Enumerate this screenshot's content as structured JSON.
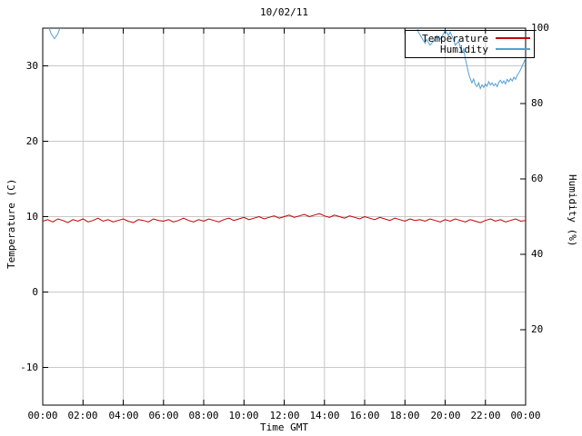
{
  "chart_data": {
    "type": "line",
    "title": "10/02/11",
    "xlabel": "Time GMT",
    "ylabel_left": "Temperature (C)",
    "ylabel_right": "Humidity (%)",
    "x_ticks": [
      "00:00",
      "02:00",
      "04:00",
      "06:00",
      "08:00",
      "10:00",
      "12:00",
      "14:00",
      "16:00",
      "18:00",
      "20:00",
      "22:00",
      "00:00"
    ],
    "x_tick_step_minutes": 120,
    "x_range_minutes": [
      0,
      1440
    ],
    "left_ticks": [
      -10,
      0,
      10,
      20,
      30
    ],
    "right_ticks": [
      20,
      40,
      60,
      80,
      100
    ],
    "ylim_left": [
      -15,
      35
    ],
    "ylim_right": [
      0,
      100
    ],
    "grid": true,
    "legend": {
      "position": "top-right",
      "boxed": true,
      "entries": [
        "Temperature",
        "Humidity"
      ]
    },
    "series": [
      {
        "name": "Temperature",
        "axis": "left",
        "color": "#c00000",
        "x_step_minutes": 15,
        "values": [
          9.4,
          9.6,
          9.3,
          9.7,
          9.5,
          9.2,
          9.6,
          9.4,
          9.7,
          9.3,
          9.5,
          9.8,
          9.4,
          9.6,
          9.3,
          9.5,
          9.7,
          9.4,
          9.2,
          9.6,
          9.5,
          9.3,
          9.7,
          9.5,
          9.4,
          9.6,
          9.3,
          9.5,
          9.8,
          9.5,
          9.3,
          9.6,
          9.4,
          9.7,
          9.5,
          9.3,
          9.6,
          9.8,
          9.5,
          9.7,
          9.9,
          9.6,
          9.8,
          10.0,
          9.7,
          9.9,
          10.1,
          9.8,
          10.0,
          10.2,
          9.9,
          10.1,
          10.3,
          10.0,
          10.2,
          10.4,
          10.1,
          9.9,
          10.2,
          10.0,
          9.8,
          10.1,
          9.9,
          9.7,
          10.0,
          9.8,
          9.6,
          9.9,
          9.7,
          9.5,
          9.8,
          9.6,
          9.4,
          9.7,
          9.5,
          9.6,
          9.4,
          9.7,
          9.5,
          9.3,
          9.6,
          9.4,
          9.7,
          9.5,
          9.3,
          9.6,
          9.4,
          9.2,
          9.5,
          9.7,
          9.4,
          9.6,
          9.3,
          9.5,
          9.7,
          9.4,
          9.5
        ]
      },
      {
        "name": "Humidity",
        "axis": "right",
        "color": "#52a0d2",
        "segments": [
          {
            "x_minutes": [
              15,
              25,
              35,
              45,
              55
            ],
            "values": [
              101,
              98.5,
              97.2,
              98.5,
              101
            ]
          },
          {
            "x_minutes": [
              1115,
              1120,
              1130,
              1140,
              1145,
              1155,
              1165,
              1175,
              1185,
              1195,
              1200,
              1210,
              1215,
              1225,
              1230,
              1240,
              1245,
              1250,
              1255,
              1260,
              1265,
              1270,
              1275,
              1280,
              1285,
              1290,
              1295,
              1300,
              1305,
              1310,
              1315,
              1320,
              1325,
              1330,
              1335,
              1340,
              1345,
              1350,
              1355,
              1360,
              1365,
              1370,
              1375,
              1380,
              1385,
              1390,
              1395,
              1400,
              1405,
              1410,
              1415,
              1420,
              1425,
              1430,
              1435,
              1440
            ],
            "values": [
              100.5,
              99,
              97.5,
              96,
              97,
              95.5,
              96.5,
              98,
              97,
              98.5,
              99.5,
              98,
              99,
              97,
              95.5,
              96.5,
              95,
              93.5,
              94.5,
              92,
              90,
              88,
              86.5,
              85.5,
              86.5,
              85,
              84.5,
              85.5,
              84,
              85,
              84.3,
              85.2,
              84.6,
              85.8,
              84.9,
              85.5,
              84.7,
              85.3,
              84.5,
              85.6,
              86.2,
              85.4,
              86,
              85.2,
              86.4,
              85.8,
              86.6,
              86,
              87,
              86.4,
              87.5,
              88.2,
              89,
              90,
              91,
              92
            ]
          }
        ]
      }
    ],
    "style": {
      "grid_color": "#c8c8c8",
      "axis_color": "#000000",
      "background": "#ffffff"
    }
  }
}
